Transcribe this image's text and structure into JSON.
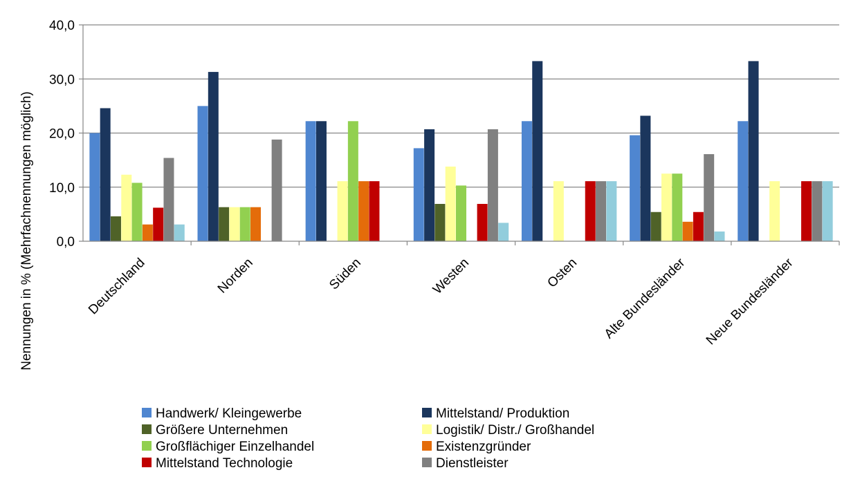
{
  "chart_data": {
    "type": "bar",
    "ylabel": "Nennungen in %  (Mehrfachnennungen möglich)",
    "xlabel": "",
    "ylim": [
      0,
      40
    ],
    "yticks": [
      "0,0",
      "10,0",
      "20,0",
      "30,0",
      "40,0"
    ],
    "ytick_values": [
      0,
      10,
      20,
      30,
      40
    ],
    "grid": true,
    "legend_position": "bottom",
    "categories": [
      "Deutschland",
      "Norden",
      "Süden",
      "Westen",
      "Osten",
      "Alte Bundesländer",
      "Neue Bundesländer"
    ],
    "series": [
      {
        "name": "Handwerk/ Kleingewerbe",
        "color": "#4f86d0",
        "values": [
          20.0,
          25.0,
          22.2,
          17.2,
          22.2,
          19.6,
          22.2
        ]
      },
      {
        "name": "Mittelstand/ Produktion",
        "color": "#1b365d",
        "values": [
          24.6,
          31.3,
          22.2,
          20.7,
          33.3,
          23.2,
          33.3
        ]
      },
      {
        "name": "Größere Unternehmen",
        "color": "#4f6228",
        "values": [
          4.6,
          6.3,
          0,
          6.9,
          0,
          5.4,
          0
        ]
      },
      {
        "name": "Logistik/ Distr./ Großhandel",
        "color": "#ffff99",
        "values": [
          12.3,
          6.3,
          11.1,
          13.8,
          11.1,
          12.5,
          11.1
        ]
      },
      {
        "name": "Großflächiger Einzelhandel",
        "color": "#92d050",
        "values": [
          10.8,
          6.3,
          22.2,
          10.3,
          0,
          12.5,
          0
        ]
      },
      {
        "name": "Existenzgründer",
        "color": "#e46c0a",
        "values": [
          3.1,
          6.3,
          11.1,
          0,
          0,
          3.6,
          0
        ]
      },
      {
        "name": "Mittelstand Technologie",
        "color": "#c00000",
        "values": [
          6.2,
          0,
          11.1,
          6.9,
          11.1,
          5.4,
          11.1
        ]
      },
      {
        "name": "Dienstleister",
        "color": "#808080",
        "values": [
          15.4,
          18.8,
          0,
          20.7,
          11.1,
          16.1,
          11.1
        ]
      },
      {
        "name": "",
        "color": "#92cddc",
        "values": [
          3.1,
          0,
          0,
          3.4,
          11.1,
          1.8,
          11.1
        ]
      }
    ]
  }
}
